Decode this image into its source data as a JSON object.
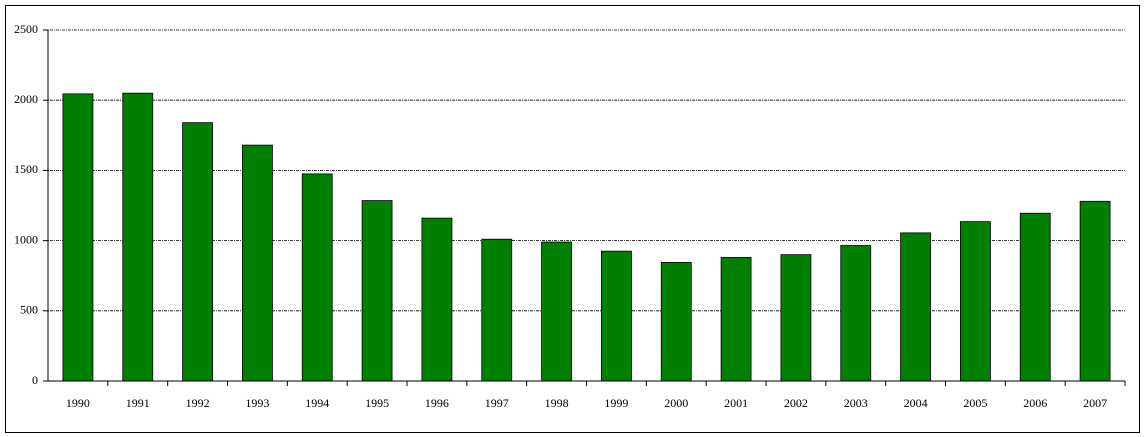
{
  "chart_data": {
    "type": "bar",
    "categories": [
      "1990",
      "1991",
      "1992",
      "1993",
      "1994",
      "1995",
      "1996",
      "1997",
      "1998",
      "1999",
      "2000",
      "2001",
      "2002",
      "2003",
      "2004",
      "2005",
      "2006",
      "2007"
    ],
    "values": [
      2045,
      2050,
      1840,
      1680,
      1475,
      1285,
      1160,
      1010,
      990,
      925,
      845,
      880,
      900,
      965,
      1055,
      1135,
      1195,
      1280
    ],
    "color": "#008000",
    "ylim": [
      0,
      2500
    ],
    "yticks": [
      0,
      500,
      1000,
      1500,
      2000,
      2500
    ],
    "grid": true
  }
}
